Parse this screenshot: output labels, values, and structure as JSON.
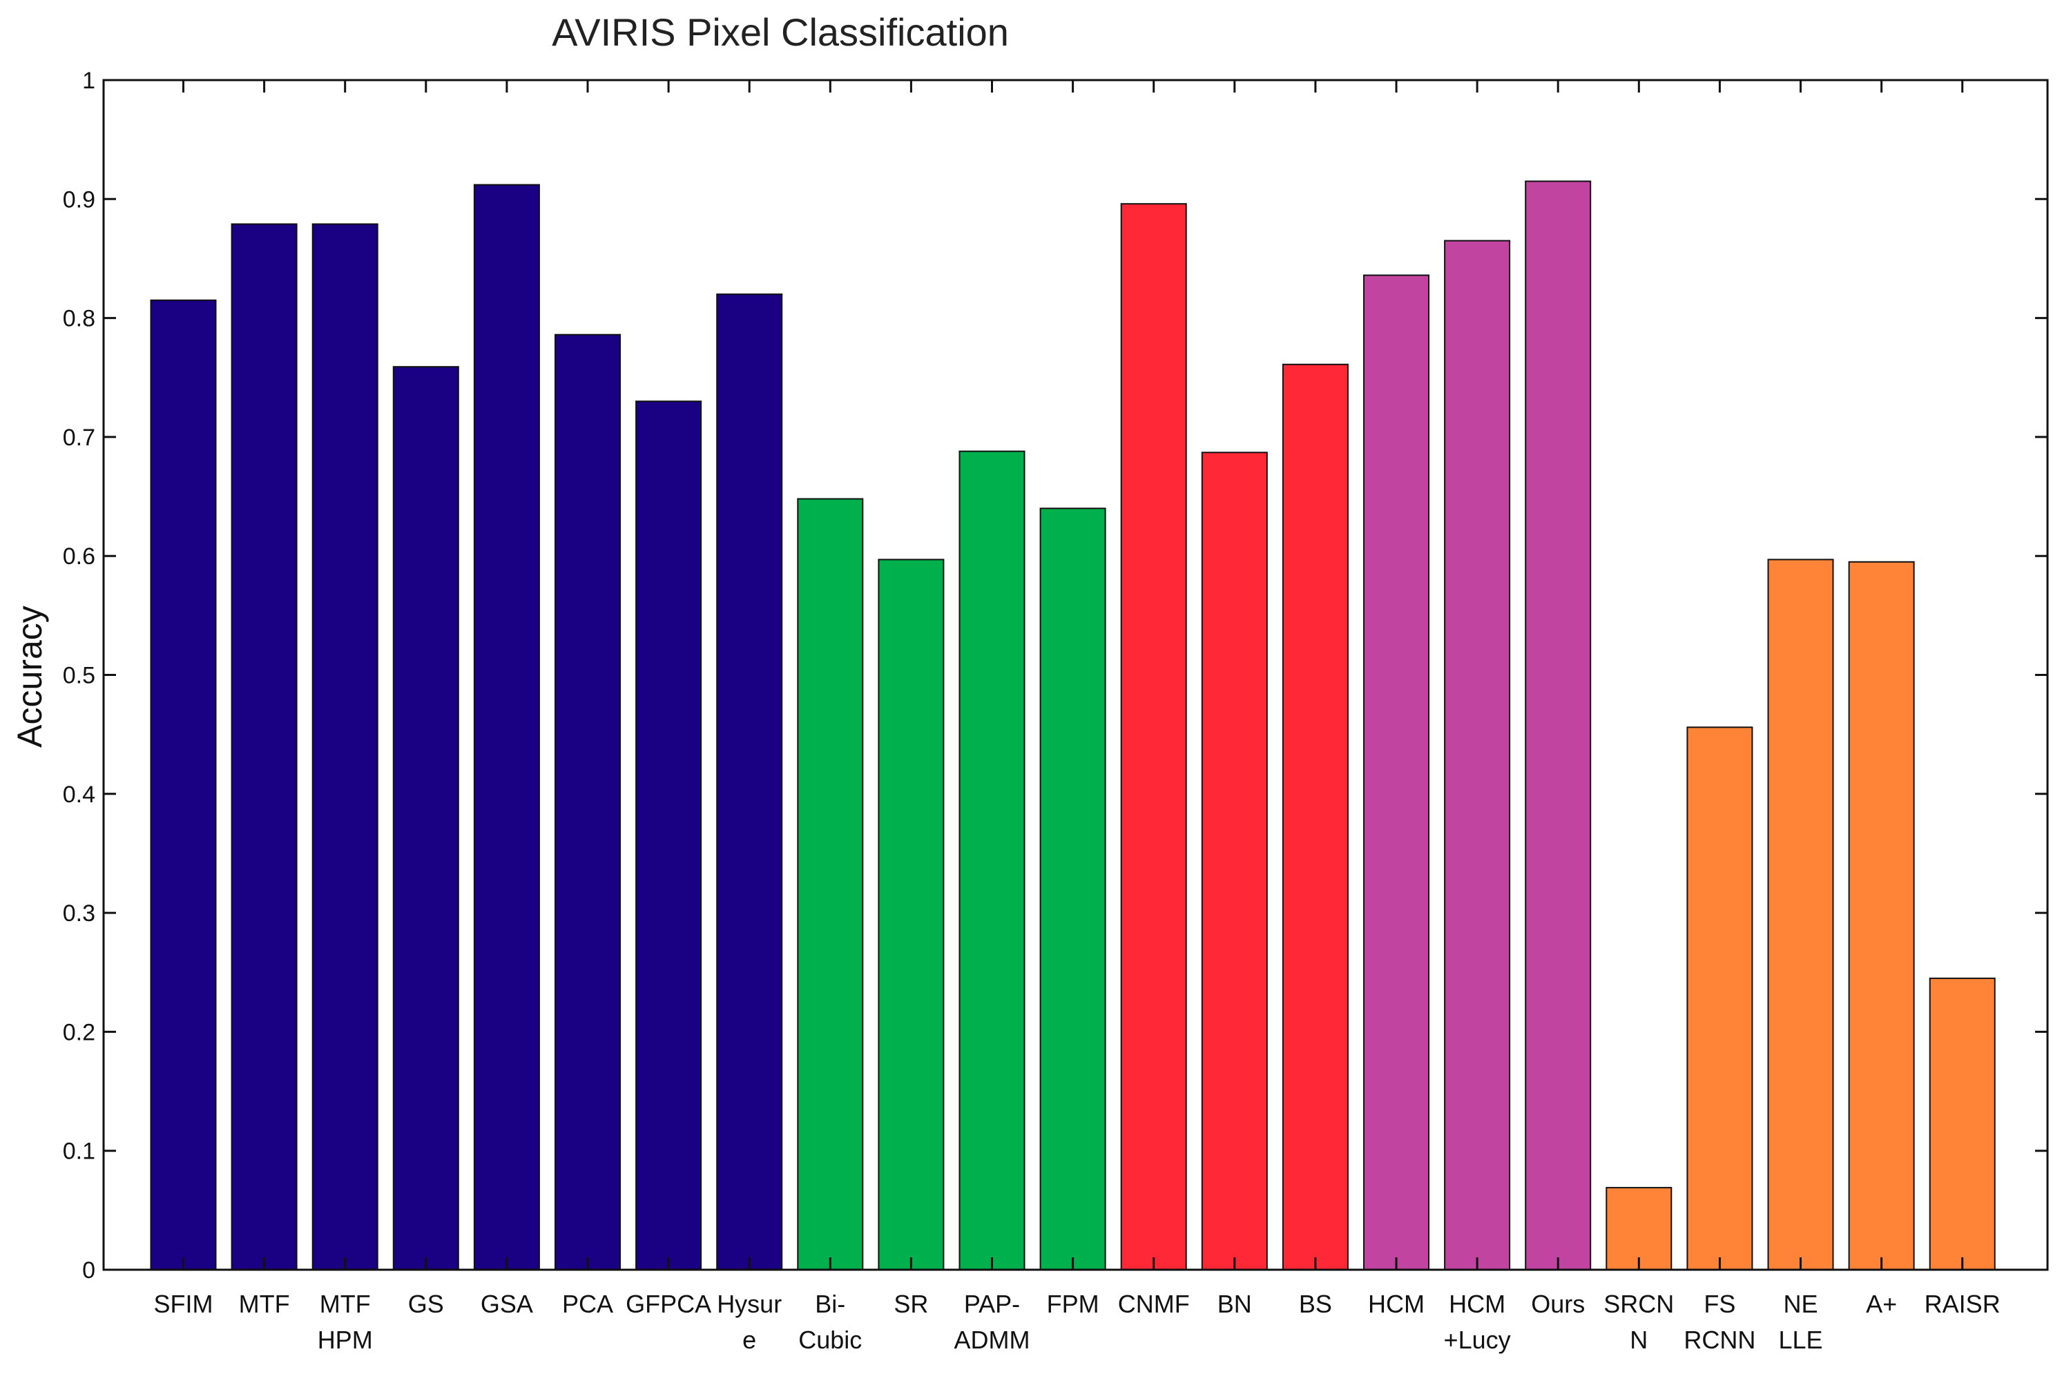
{
  "chart_data": {
    "type": "bar",
    "title": "AVIRIS Pixel Classification",
    "xlabel": "",
    "ylabel": "Accuracy",
    "ylim": [
      0,
      1
    ],
    "yticks": [
      0,
      0.1,
      0.2,
      0.3,
      0.4,
      0.5,
      0.6,
      0.7,
      0.8,
      0.9,
      1
    ],
    "ytick_labels": [
      "0",
      "0.1",
      "0.2",
      "0.3",
      "0.4",
      "0.5",
      "0.6",
      "0.7",
      "0.8",
      "0.9",
      "1"
    ],
    "grid": false,
    "categories": [
      [
        "SFIM"
      ],
      [
        "MTF"
      ],
      [
        "MTF",
        "HPM"
      ],
      [
        "GS"
      ],
      [
        "GSA"
      ],
      [
        "PCA"
      ],
      [
        "GFPCA"
      ],
      [
        "Hysur",
        "e"
      ],
      [
        "Bi-",
        "Cubic"
      ],
      [
        "SR"
      ],
      [
        "PAP-",
        "ADMM"
      ],
      [
        "FPM"
      ],
      [
        "CNMF"
      ],
      [
        "BN"
      ],
      [
        "BS"
      ],
      [
        "HCM"
      ],
      [
        "HCM",
        "+Lucy"
      ],
      [
        "Ours"
      ],
      [
        "SRCN",
        "N"
      ],
      [
        "FS",
        "RCNN"
      ],
      [
        "NE",
        "LLE"
      ],
      [
        "A+"
      ],
      [
        "RAISR"
      ]
    ],
    "values": [
      0.815,
      0.879,
      0.879,
      0.759,
      0.912,
      0.786,
      0.73,
      0.82,
      0.648,
      0.597,
      0.688,
      0.64,
      0.896,
      0.687,
      0.761,
      0.836,
      0.865,
      0.915,
      0.069,
      0.456,
      0.597,
      0.595,
      0.245
    ],
    "groups": [
      0,
      0,
      0,
      0,
      0,
      0,
      0,
      0,
      1,
      1,
      1,
      1,
      2,
      2,
      2,
      3,
      3,
      3,
      4,
      4,
      4,
      4,
      4
    ],
    "group_colors": [
      "#1a0082",
      "#00b04c",
      "#ff2836",
      "#c044a0",
      "#ff8438"
    ]
  }
}
